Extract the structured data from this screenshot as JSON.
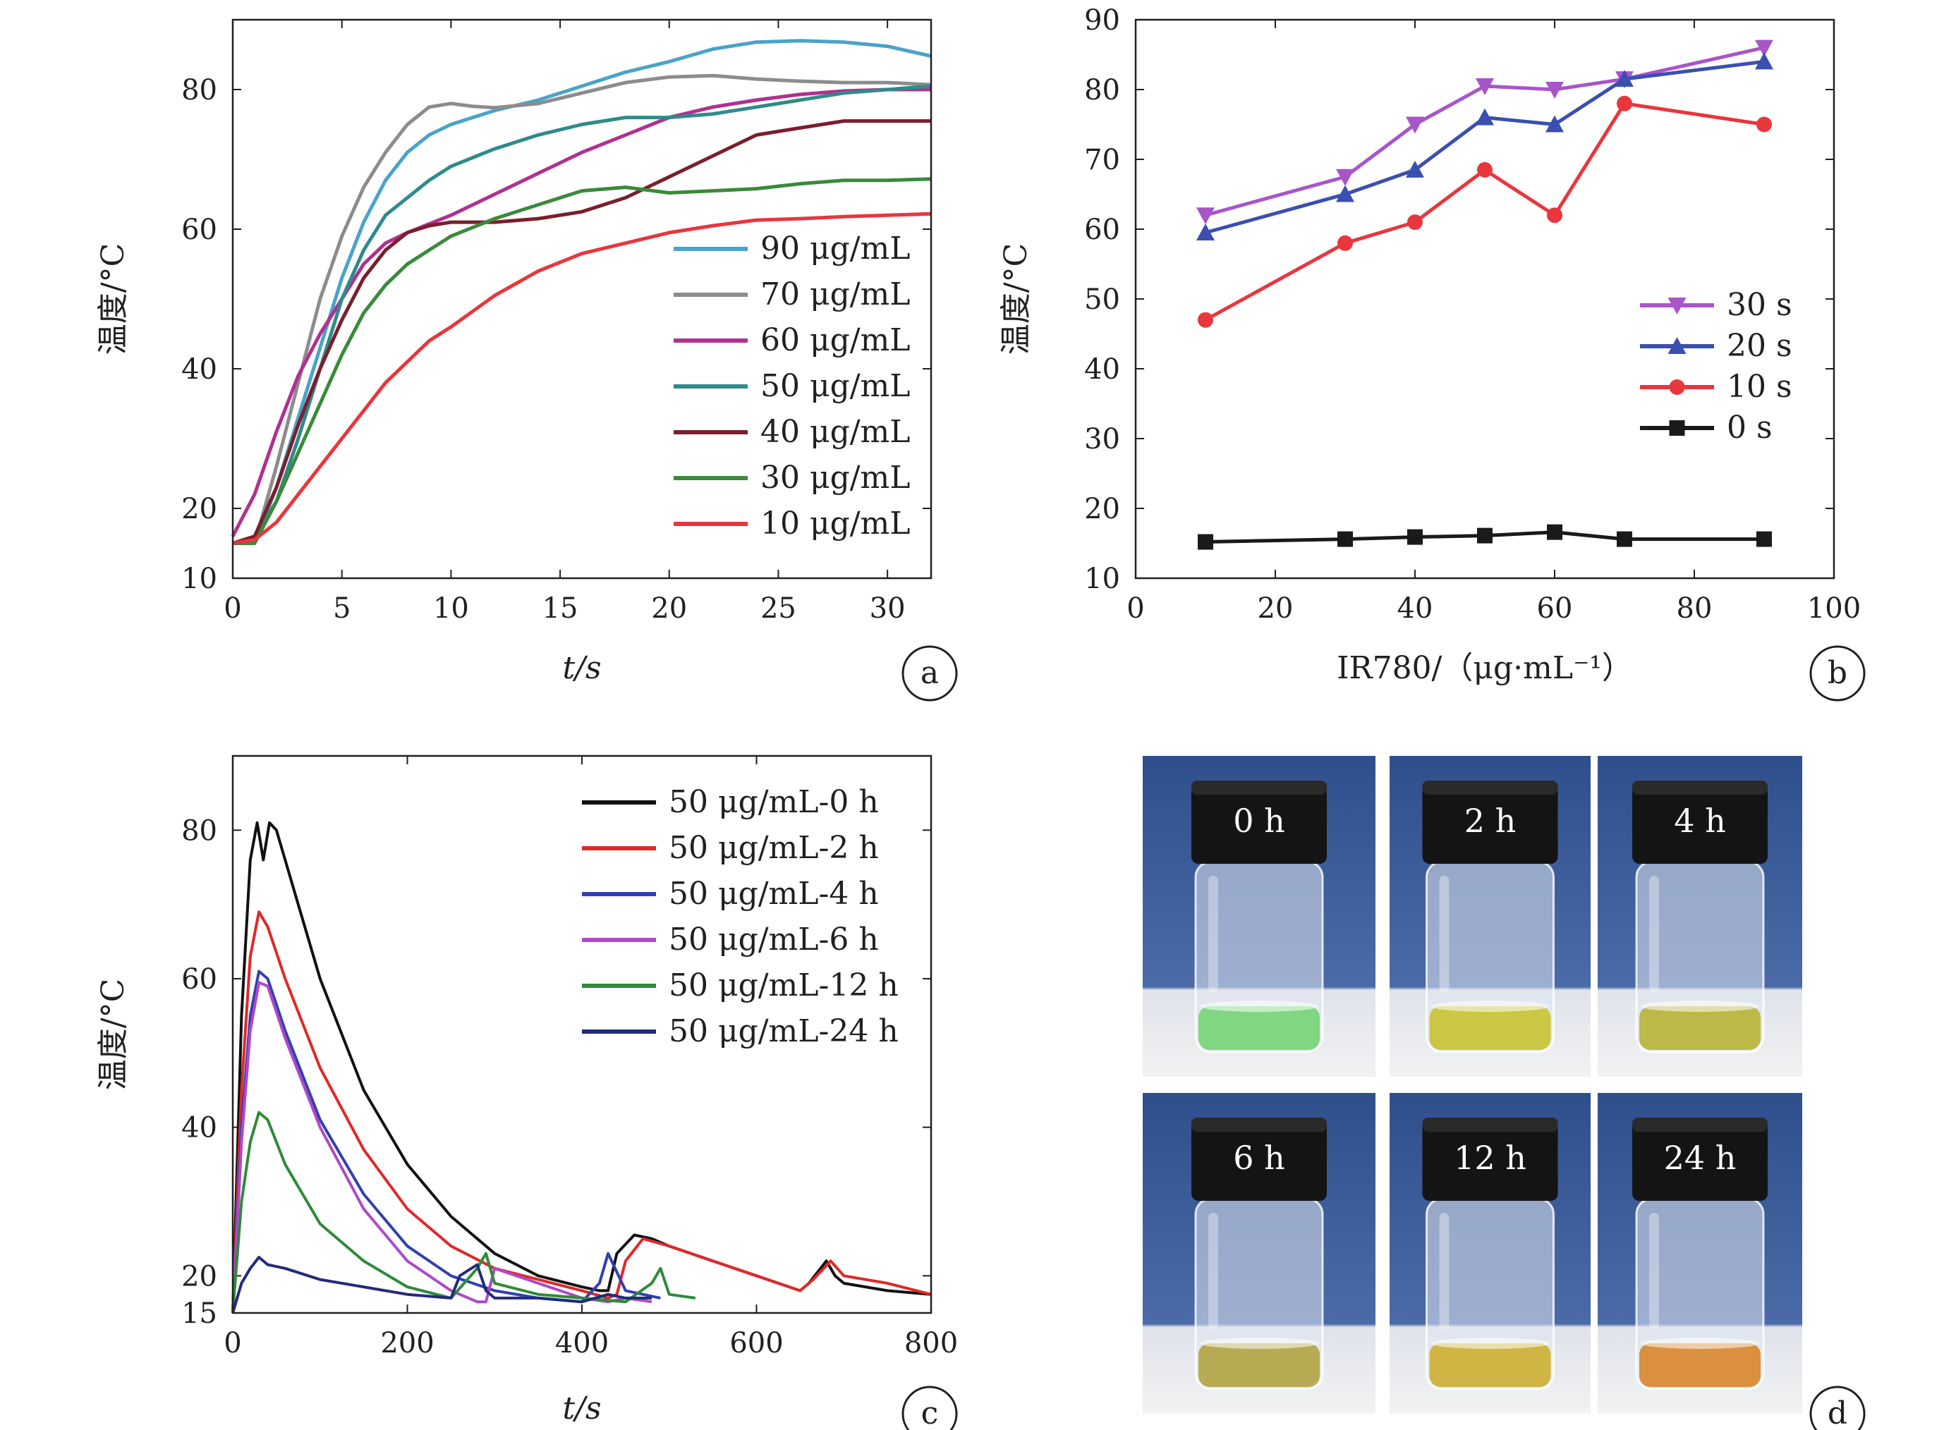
{
  "chart_data": [
    {
      "panel": "a",
      "type": "line",
      "xlabel": "t/s",
      "ylabel": "温度/°C",
      "xlim": [
        0,
        32
      ],
      "ylim": [
        10,
        90
      ],
      "xticks": [
        "0",
        "5",
        "10",
        "15",
        "20",
        "25",
        "30"
      ],
      "yticks": [
        "10",
        "20",
        "40",
        "60",
        "80"
      ],
      "legend_position": "right",
      "series": [
        {
          "name": "90 μg/mL",
          "color": "#4aa3c9",
          "x": [
            0,
            1,
            2,
            3,
            4,
            5,
            6,
            7,
            8,
            9,
            10,
            12,
            14,
            16,
            18,
            20,
            22,
            24,
            26,
            28,
            30,
            32
          ],
          "y": [
            15,
            15,
            23,
            33,
            43,
            53,
            61,
            67,
            71,
            73.5,
            75,
            77,
            78.5,
            80.5,
            82.5,
            84,
            85.8,
            86.8,
            87,
            86.8,
            86.2,
            84.8
          ]
        },
        {
          "name": "70 μg/mL",
          "color": "#8c8c8c",
          "x": [
            0,
            1,
            2,
            3,
            4,
            5,
            6,
            7,
            8,
            9,
            10,
            11,
            12,
            14,
            16,
            18,
            20,
            22,
            24,
            26,
            28,
            30,
            32
          ],
          "y": [
            15,
            15,
            26,
            38,
            50,
            59,
            66,
            71,
            75,
            77.5,
            78,
            77.6,
            77.4,
            78,
            79.5,
            81,
            81.8,
            82,
            81.5,
            81.2,
            81,
            81,
            80.7
          ]
        },
        {
          "name": "60 μg/mL",
          "color": "#b0308f",
          "x": [
            0,
            1,
            2,
            3,
            4,
            5,
            6,
            7,
            8,
            10,
            12,
            14,
            16,
            18,
            20,
            22,
            24,
            26,
            28,
            30,
            32
          ],
          "y": [
            16,
            22,
            31,
            39,
            45,
            50,
            55,
            58,
            59.5,
            62,
            65,
            68,
            71,
            73.5,
            76,
            77.5,
            78.5,
            79.3,
            79.8,
            80,
            80
          ]
        },
        {
          "name": "50 μg/mL",
          "color": "#2e8b8b",
          "x": [
            0,
            1,
            2,
            3,
            4,
            5,
            6,
            7,
            8,
            9,
            10,
            12,
            14,
            16,
            18,
            20,
            22,
            24,
            26,
            28,
            30,
            32
          ],
          "y": [
            15,
            16,
            21,
            30,
            40,
            50,
            57,
            62,
            64.5,
            67,
            69,
            71.5,
            73.5,
            75,
            76,
            76,
            76.5,
            77.5,
            78.5,
            79.5,
            80,
            80.5
          ]
        },
        {
          "name": "40 μg/mL",
          "color": "#7a1f2b",
          "x": [
            0,
            1,
            2,
            3,
            4,
            5,
            6,
            7,
            8,
            9,
            10,
            12,
            14,
            16,
            18,
            20,
            22,
            24,
            26,
            28,
            30,
            32
          ],
          "y": [
            15,
            16,
            23,
            32,
            40,
            47,
            53,
            57,
            59.5,
            60.5,
            61,
            61,
            61.5,
            62.5,
            64.5,
            67.5,
            70.5,
            73.5,
            74.5,
            75.5,
            75.5,
            75.5
          ]
        },
        {
          "name": "30 μg/mL",
          "color": "#3a8a3a",
          "x": [
            0,
            1,
            2,
            3,
            4,
            5,
            6,
            7,
            8,
            9,
            10,
            12,
            14,
            16,
            18,
            20,
            22,
            24,
            26,
            28,
            30,
            32
          ],
          "y": [
            15,
            15,
            21,
            28,
            35,
            42,
            48,
            52,
            55,
            57,
            59,
            61.5,
            63.5,
            65.5,
            66,
            65.2,
            65.5,
            65.8,
            66.5,
            67,
            67,
            67.2
          ]
        },
        {
          "name": "10 μg/mL",
          "color": "#e8363d",
          "x": [
            0,
            1,
            2,
            3,
            4,
            5,
            6,
            7,
            8,
            9,
            10,
            12,
            14,
            16,
            18,
            20,
            22,
            24,
            26,
            28,
            30,
            32
          ],
          "y": [
            15,
            15.5,
            18,
            22,
            26,
            30,
            34,
            38,
            41,
            44,
            46,
            50.5,
            54,
            56.5,
            58,
            59.5,
            60.5,
            61.3,
            61.5,
            61.8,
            62,
            62.2
          ]
        }
      ]
    },
    {
      "panel": "b",
      "type": "line",
      "xlabel": "IR780/（μg·mL⁻¹）",
      "ylabel": "温度/°C",
      "xlim": [
        0,
        100
      ],
      "ylim": [
        10,
        90
      ],
      "xticks": [
        "0",
        "20",
        "40",
        "60",
        "80",
        "100"
      ],
      "yticks": [
        "10",
        "20",
        "30",
        "40",
        "50",
        "60",
        "70",
        "80",
        "90"
      ],
      "legend_position": "right",
      "x": [
        10,
        30,
        40,
        50,
        60,
        70,
        90
      ],
      "series": [
        {
          "name": "30 s",
          "color": "#a855c8",
          "marker": "triangle-down",
          "y": [
            62,
            67.5,
            75,
            80.5,
            80,
            81.5,
            86
          ]
        },
        {
          "name": "20 s",
          "color": "#3a4fb0",
          "marker": "triangle-up",
          "y": [
            59.5,
            65,
            68.5,
            76,
            75,
            81.5,
            84
          ]
        },
        {
          "name": "10 s",
          "color": "#e8363d",
          "marker": "circle",
          "y": [
            47,
            58,
            61,
            68.5,
            62,
            78,
            75
          ]
        },
        {
          "name": "0 s",
          "color": "#1a1a1a",
          "marker": "square",
          "y": [
            15.2,
            15.6,
            15.9,
            16.1,
            16.6,
            15.6,
            15.6
          ]
        }
      ]
    },
    {
      "panel": "c",
      "type": "line",
      "xlabel": "t/s",
      "ylabel": "温度/°C",
      "xlim": [
        0,
        800
      ],
      "ylim": [
        15,
        90
      ],
      "xticks": [
        "0",
        "200",
        "400",
        "600",
        "800"
      ],
      "yticks": [
        "15",
        "20",
        "40",
        "60",
        "80"
      ],
      "legend_position": "top-right",
      "series": [
        {
          "name": "50 μg/mL-0 h",
          "color": "#111111",
          "x": [
            0,
            10,
            20,
            28,
            35,
            42,
            50,
            70,
            100,
            150,
            200,
            250,
            300,
            350,
            400,
            420,
            430,
            440,
            460,
            480,
            500,
            550,
            600,
            650,
            660,
            680,
            690,
            700,
            750,
            800
          ],
          "y": [
            15,
            55,
            76,
            81,
            76,
            81,
            80,
            72,
            60,
            45,
            35,
            28,
            23,
            20,
            18.5,
            18,
            18,
            23,
            25.5,
            25,
            24,
            22,
            20,
            18,
            19,
            22,
            20,
            19,
            18,
            17.5
          ]
        },
        {
          "name": "50 μg/mL-2 h",
          "color": "#e02828",
          "x": [
            0,
            10,
            20,
            30,
            40,
            60,
            100,
            150,
            200,
            250,
            300,
            350,
            400,
            430,
            440,
            450,
            470,
            500,
            550,
            600,
            650,
            665,
            685,
            700,
            750,
            800
          ],
          "y": [
            15,
            45,
            63,
            69,
            67,
            60,
            48,
            37,
            29,
            24,
            21,
            19.5,
            18,
            17,
            17.5,
            22,
            25,
            24,
            22,
            20,
            18,
            19.5,
            22,
            20,
            19,
            17.5
          ]
        },
        {
          "name": "50 μg/mL-4 h",
          "color": "#3040b0",
          "x": [
            0,
            10,
            20,
            30,
            40,
            60,
            100,
            150,
            200,
            250,
            300,
            350,
            400,
            420,
            430,
            450,
            470,
            490
          ],
          "y": [
            15,
            40,
            55,
            61,
            60,
            53,
            41,
            31,
            24,
            20,
            18,
            17,
            16.5,
            19,
            23,
            18,
            17.5,
            17
          ]
        },
        {
          "name": "50 μg/mL-6 h",
          "color": "#b048c8",
          "x": [
            0,
            10,
            20,
            30,
            40,
            60,
            100,
            150,
            200,
            250,
            280,
            290,
            300,
            350,
            400,
            430,
            450,
            480
          ],
          "y": [
            15,
            38,
            53,
            59.5,
            59,
            52,
            40,
            29,
            22,
            18,
            16.5,
            16.5,
            21,
            19,
            17,
            16.5,
            17,
            16.5
          ]
        },
        {
          "name": "50 μg/mL-12 h",
          "color": "#2f8a3a",
          "x": [
            0,
            10,
            20,
            30,
            40,
            60,
            100,
            150,
            200,
            250,
            280,
            290,
            300,
            350,
            400,
            450,
            480,
            490,
            500,
            530
          ],
          "y": [
            15,
            30,
            38,
            42,
            41,
            35,
            27,
            22,
            18.5,
            17,
            21,
            23,
            19,
            17.5,
            17,
            16.5,
            19,
            21,
            17.5,
            17
          ]
        },
        {
          "name": "50 μg/mL-24 h",
          "color": "#222a7a",
          "x": [
            0,
            10,
            20,
            30,
            40,
            60,
            100,
            150,
            200,
            250,
            260,
            280,
            290,
            300,
            350,
            400,
            430,
            450,
            480
          ],
          "y": [
            15,
            19,
            21,
            22.5,
            21.5,
            21,
            19.5,
            18.5,
            17.5,
            17,
            20,
            21.5,
            18,
            17,
            17,
            16.5,
            17.5,
            17,
            17
          ]
        }
      ]
    }
  ],
  "panels": {
    "a": {
      "label": "a"
    },
    "b": {
      "label": "b"
    },
    "c": {
      "label": "c"
    },
    "d": {
      "label": "d"
    }
  },
  "photos": {
    "vials": [
      {
        "label": "0 h",
        "liquid": "#7ad67a"
      },
      {
        "label": "2 h",
        "liquid": "#c9c43a"
      },
      {
        "label": "4 h",
        "liquid": "#b9b63e"
      },
      {
        "label": "6 h",
        "liquid": "#b3a74a"
      },
      {
        "label": "12 h",
        "liquid": "#d0b23a"
      },
      {
        "label": "24 h",
        "liquid": "#d98b35"
      }
    ]
  }
}
